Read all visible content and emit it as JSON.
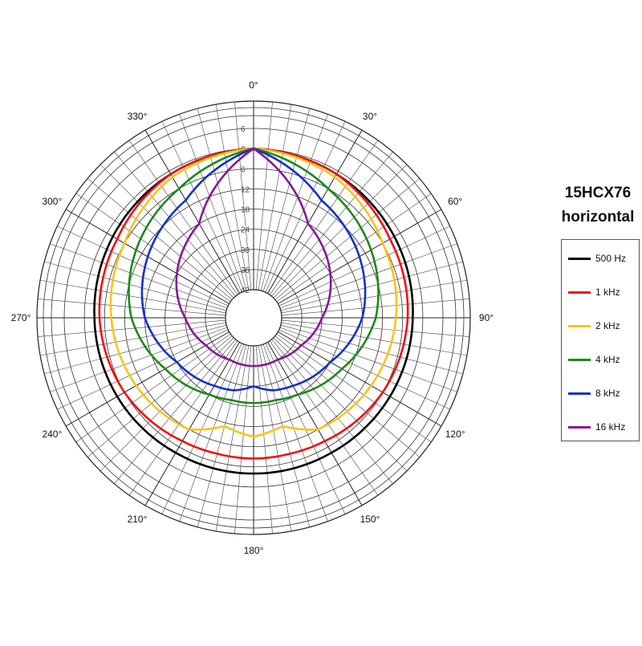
{
  "title_line1": "15HCX76",
  "title_line2": "horizontal",
  "chart_data": {
    "type": "polar",
    "angle_unit": "degrees",
    "angle_labels": [
      "0°",
      "30°",
      "60°",
      "90°",
      "120°",
      "150°",
      "180°",
      "210°",
      "240°",
      "270°",
      "300°",
      "330°"
    ],
    "radial_ticks": [
      "6",
      "0",
      "6",
      "12",
      "18",
      "24",
      "30",
      "36",
      "42"
    ],
    "radial_range_db": [
      -42,
      6
    ],
    "grid": true,
    "legend_position": "right",
    "series": [
      {
        "name": "500 Hz",
        "color": "#000000",
        "angles": [
          0,
          30,
          60,
          90,
          120,
          150,
          180,
          210,
          240,
          270,
          300,
          330
        ],
        "values": [
          0,
          -1,
          -2,
          -3,
          -3.5,
          -4,
          -4,
          -4,
          -3.5,
          -3,
          -2,
          -1
        ]
      },
      {
        "name": "1 kHz",
        "color": "#ee1111",
        "angles": [
          0,
          30,
          60,
          90,
          120,
          150,
          165,
          180,
          195,
          210,
          240,
          270,
          300,
          330
        ],
        "values": [
          0,
          -1,
          -3.5,
          -4.5,
          -6,
          -8,
          -8.5,
          -8.5,
          -8.5,
          -8,
          -6,
          -4.5,
          -3.5,
          -1
        ]
      },
      {
        "name": "2 kHz",
        "color": "#f5c518",
        "angles": [
          0,
          30,
          60,
          90,
          120,
          150,
          165,
          180,
          195,
          210,
          240,
          270,
          300,
          330
        ],
        "values": [
          0,
          -2,
          -6,
          -8,
          -10,
          -12,
          -17,
          -15,
          -17,
          -12,
          -10,
          -8,
          -6,
          -2
        ]
      },
      {
        "name": "4 kHz",
        "color": "#1a8a1a",
        "angles": [
          0,
          30,
          60,
          90,
          120,
          150,
          165,
          180,
          195,
          210,
          240,
          270,
          300,
          330
        ],
        "values": [
          0,
          -6,
          -10,
          -14,
          -20,
          -24,
          -25,
          -25,
          -25,
          -24,
          -20,
          -14,
          -10,
          -6
        ]
      },
      {
        "name": "8 kHz",
        "color": "#1530cc",
        "angles": [
          0,
          30,
          60,
          90,
          120,
          150,
          165,
          180,
          195,
          210,
          240,
          270,
          300,
          330
        ],
        "values": [
          0,
          -10,
          -14,
          -18,
          -24,
          -27,
          -28,
          -30,
          -28,
          -27,
          -24,
          -18,
          -14,
          -10
        ]
      },
      {
        "name": "16 kHz",
        "color": "#8a159a",
        "angles": [
          0,
          30,
          60,
          90,
          120,
          150,
          180,
          210,
          240,
          270,
          300,
          330
        ],
        "values": [
          0,
          -18,
          -24,
          -30,
          -34,
          -36,
          -36,
          -36,
          -34,
          -30,
          -24,
          -18
        ]
      }
    ]
  }
}
